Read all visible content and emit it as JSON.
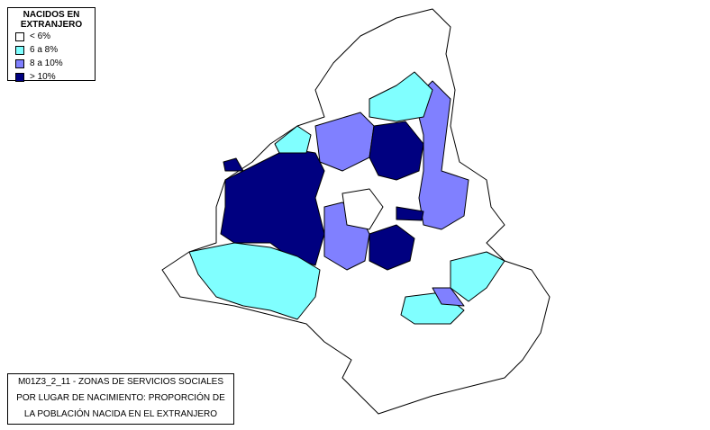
{
  "legend": {
    "title": "NACIDOS EN EXTRANJERO",
    "items": [
      {
        "label": "< 6%",
        "color": "#ffffff"
      },
      {
        "label": "6 a 8%",
        "color": "#80ffff"
      },
      {
        "label": "8 a 10%",
        "color": "#8080ff"
      },
      {
        "label": "> 10%",
        "color": "#000080"
      }
    ]
  },
  "caption": {
    "lines": [
      "M01Z3_2_11 - ZONAS DE SERVICIOS SOCIALES",
      "POR LUGAR DE NACIMIENTO: PROPORCIÓN DE",
      "LA POBLACIÓN NACIDA EN EL EXTRANJERO"
    ]
  }
}
